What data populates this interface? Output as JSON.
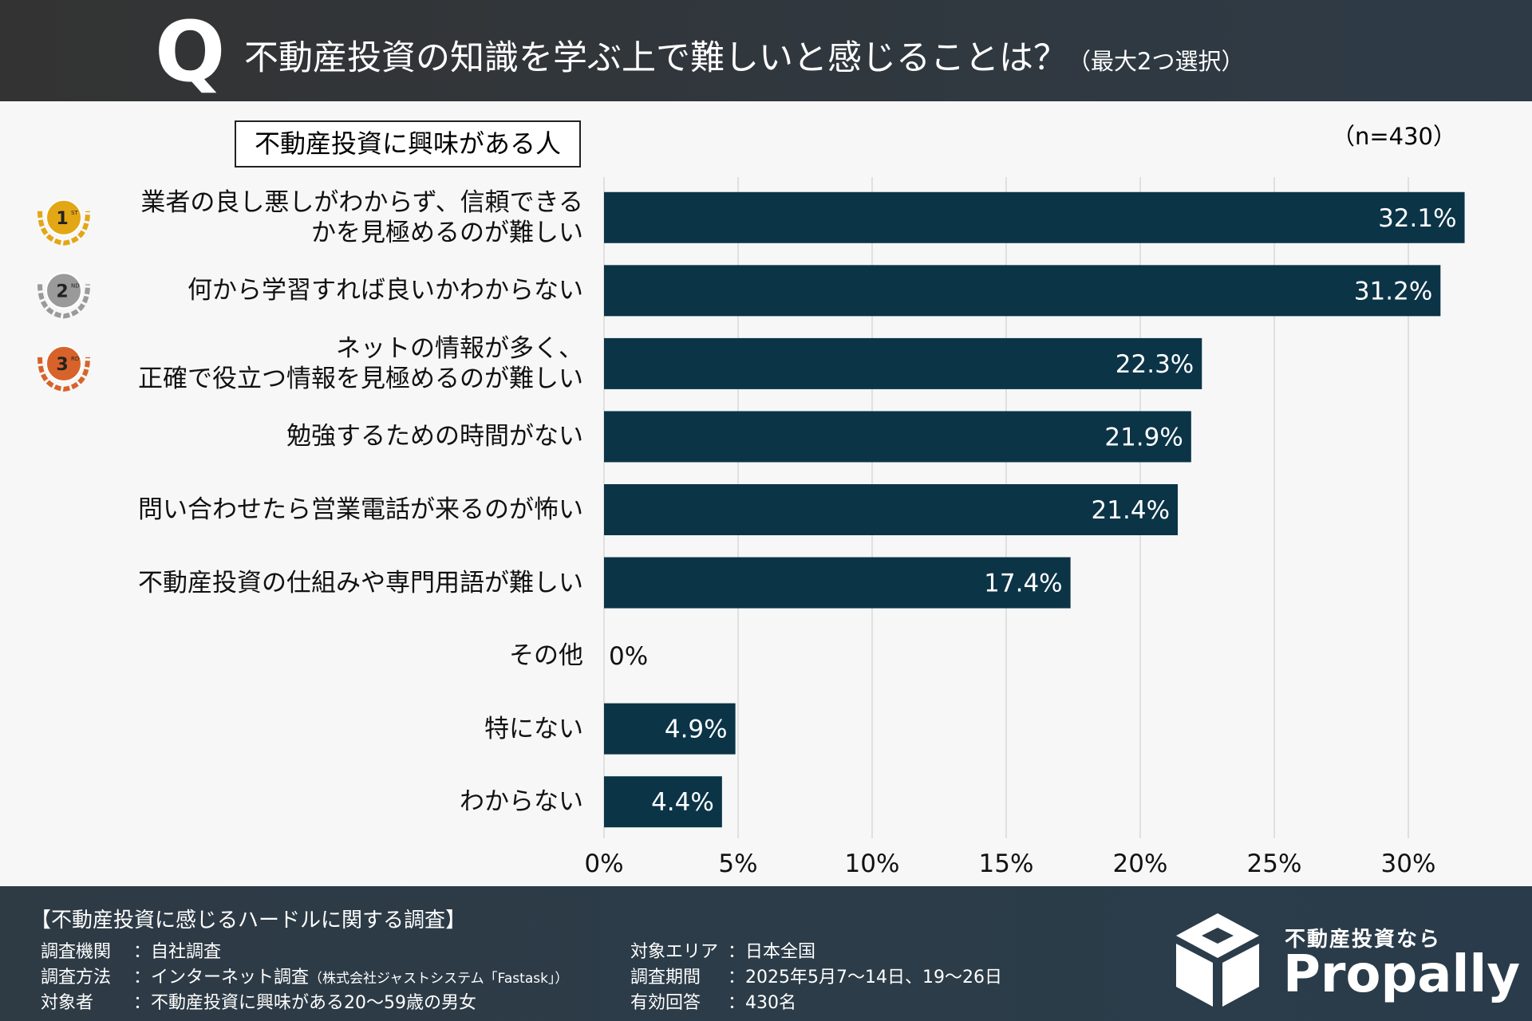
{
  "header": {
    "mark": "Q",
    "title": "不動産投資の知識を学ぶ上で難しいと感じることは？",
    "note": "（最大2つ選択）"
  },
  "chart_data": {
    "type": "bar",
    "orientation": "horizontal",
    "subtitle": "不動産投資に興味がある人",
    "sample": "（n=430）",
    "categories": [
      "業者の良し悪しがわからず、信頼できる\nかを見極めるのが難しい",
      "何から学習すれば良いかわからない",
      "ネットの情報が多く、\n正確で役立つ情報を見極めるのが難しい",
      "勉強するための時間がない",
      "問い合わせたら営業電話が来るのが怖い",
      "不動産投資の仕組みや専門用語が難しい",
      "その他",
      "特にない",
      "わからない"
    ],
    "values": [
      32.1,
      31.2,
      22.3,
      21.9,
      21.4,
      17.4,
      0,
      4.9,
      4.4
    ],
    "value_labels": [
      "32.1%",
      "31.2%",
      "22.3%",
      "21.9%",
      "21.4%",
      "17.4%",
      "0%",
      "4.9%",
      "4.4%"
    ],
    "color": "#0b3447",
    "medals": [
      {
        "label": "1",
        "suffix": "ST",
        "color": "#e3a614"
      },
      {
        "label": "2",
        "suffix": "ND",
        "color": "#9a9a9a"
      },
      {
        "label": "3",
        "suffix": "RD",
        "color": "#d8632a"
      }
    ],
    "xlim": [
      0,
      33
    ],
    "xticks": [
      {
        "value": 0,
        "label": "0%"
      },
      {
        "value": 5,
        "label": "5%"
      },
      {
        "value": 10,
        "label": "10%"
      },
      {
        "value": 15,
        "label": "15%"
      },
      {
        "value": 20,
        "label": "20%"
      },
      {
        "value": 25,
        "label": "25%"
      },
      {
        "value": 30,
        "label": "30%"
      }
    ],
    "grid": true
  },
  "footer": {
    "title": "【不動産投資に感じるハードルに関する調査】",
    "left": [
      {
        "key": "調査機関",
        "value": "：自社調査"
      },
      {
        "key": "調査方法",
        "value": "：インターネット調査",
        "note": "（株式会社ジャストシステム「Fastask」）"
      },
      {
        "key": "対象者",
        "value": "：不動産投資に興味がある20～59歳の男女"
      }
    ],
    "right": [
      {
        "key": "対象エリア",
        "value": "：日本全国"
      },
      {
        "key": "調査期間",
        "value": "：2025年5月7～14日、19～26日"
      },
      {
        "key": "有効回答",
        "value": "：430名"
      }
    ],
    "logo_tagline": "不動産投資なら",
    "logo": "Propally"
  }
}
